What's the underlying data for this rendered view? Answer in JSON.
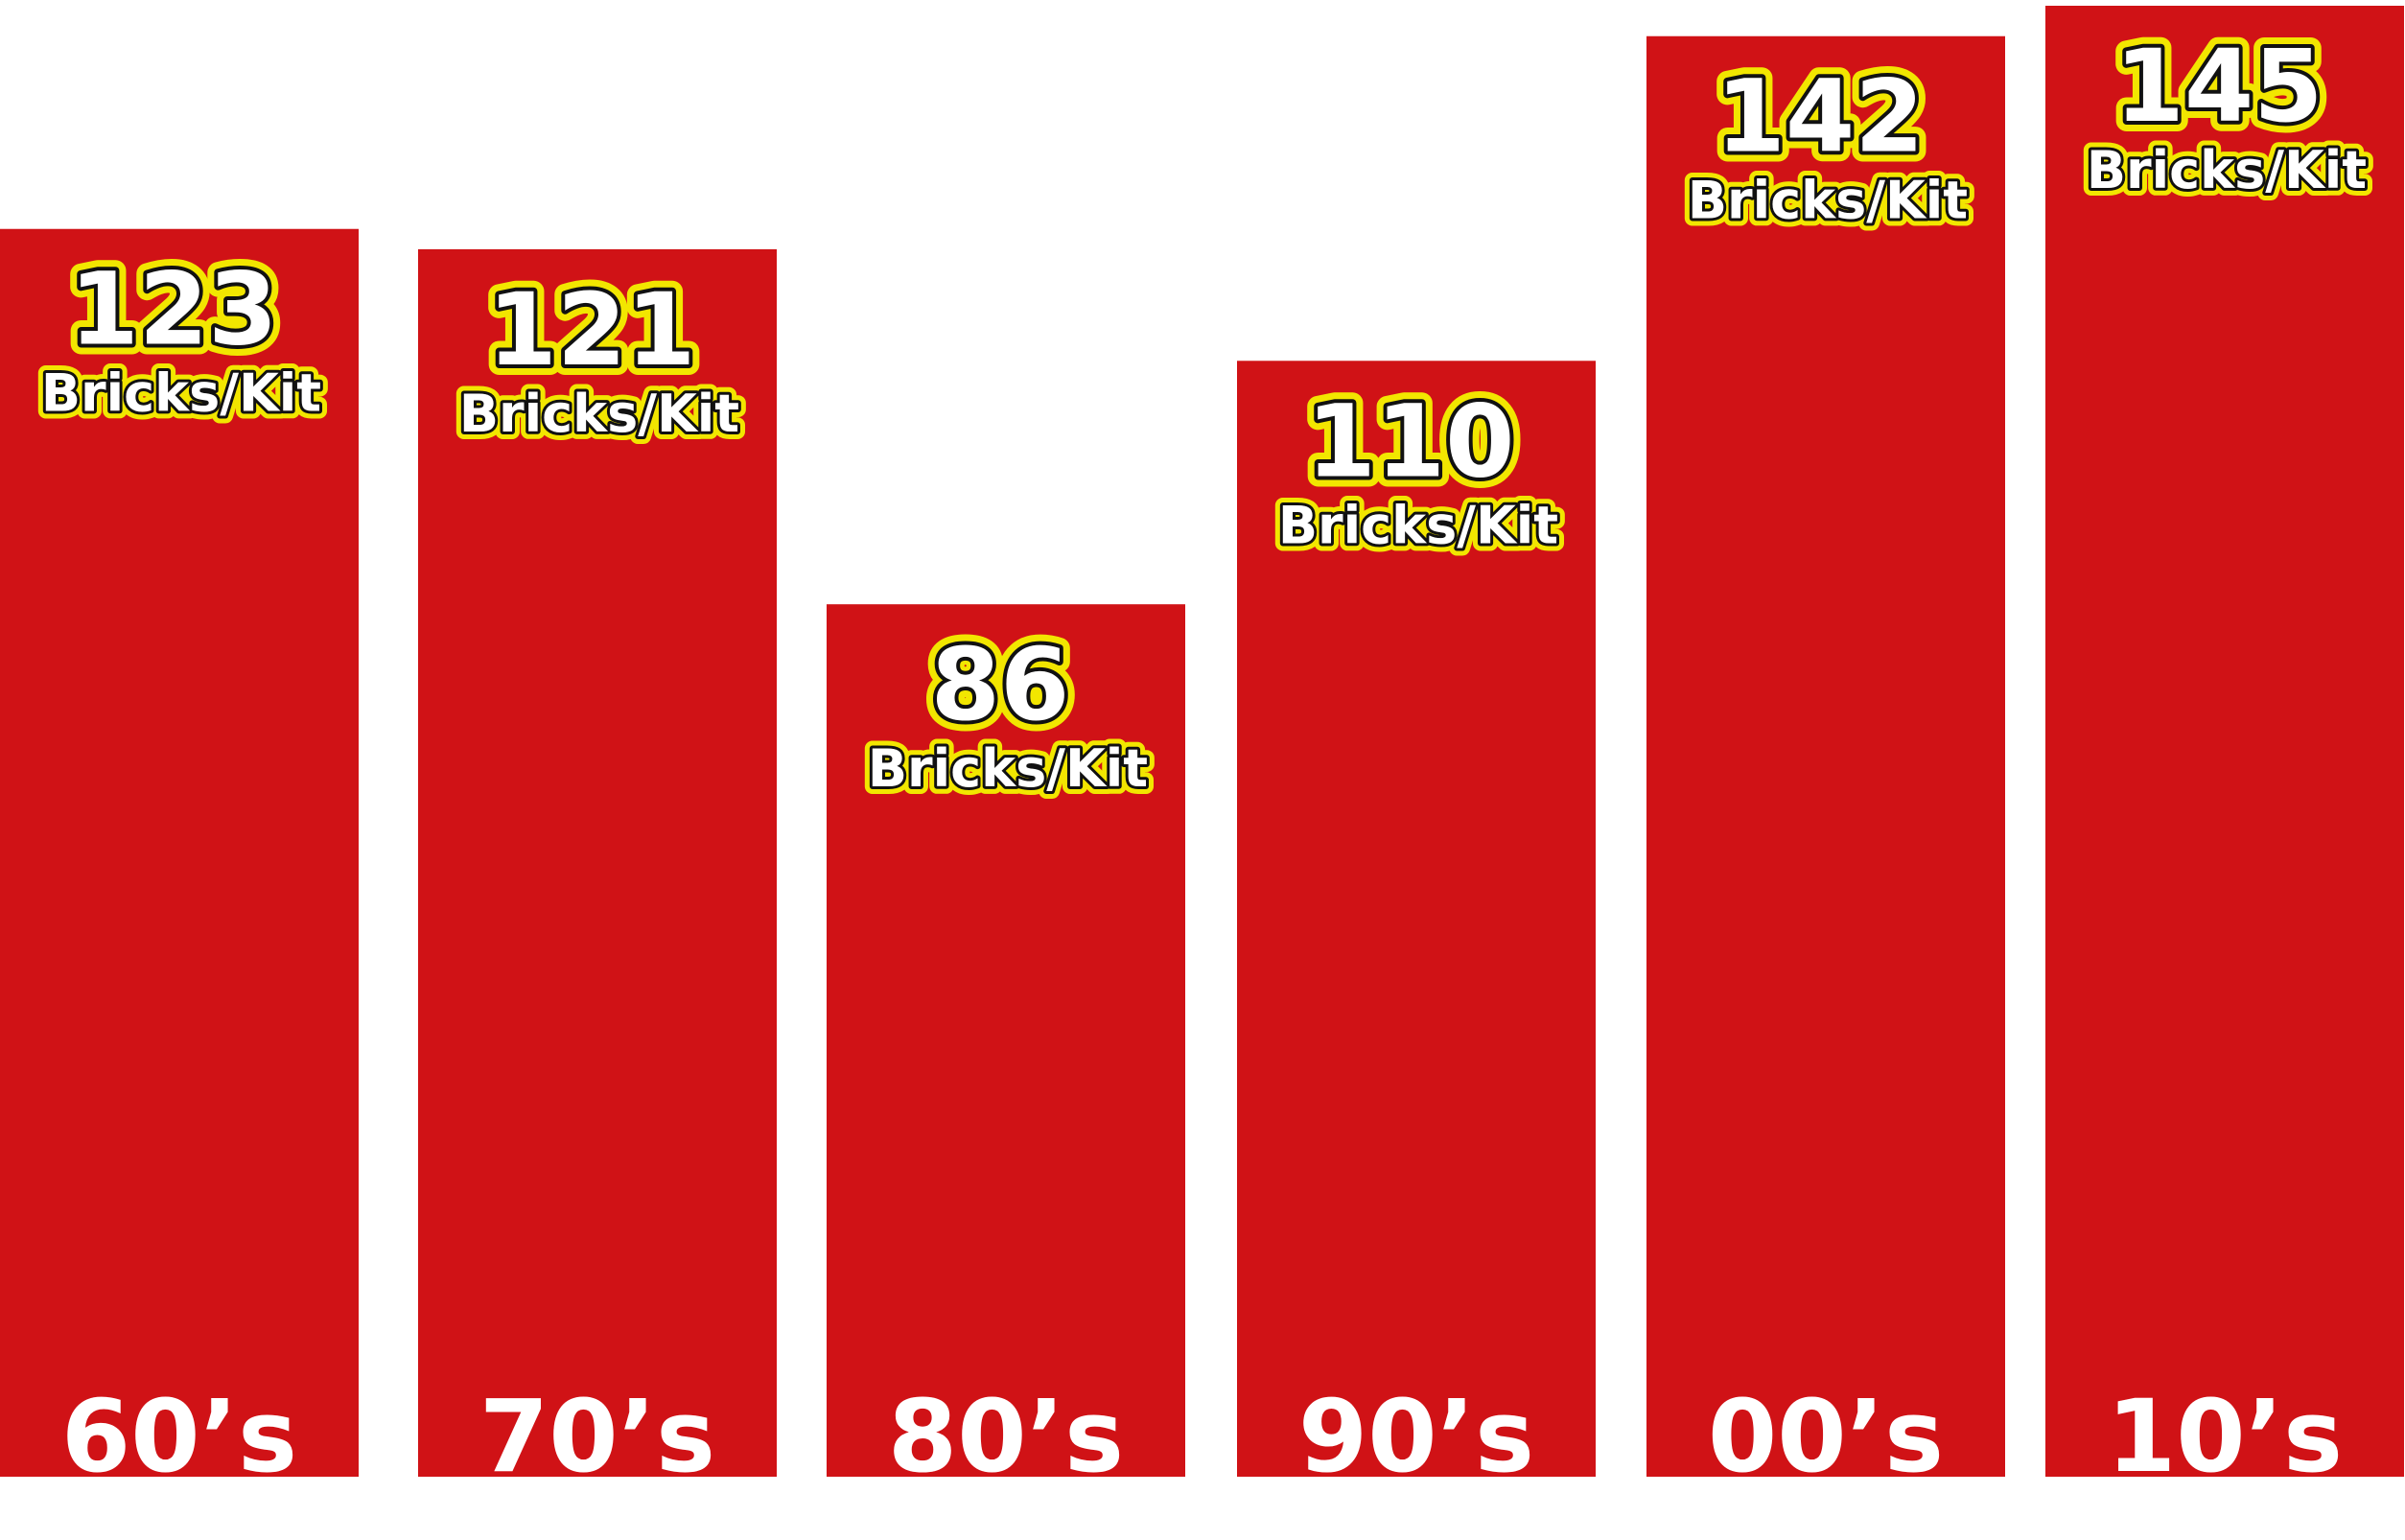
{
  "chart_data": {
    "type": "bar",
    "categories": [
      "60’s",
      "70’s",
      "80’s",
      "90’s",
      "00’s",
      "10’s"
    ],
    "values": [
      123,
      121,
      86,
      110,
      142,
      145
    ],
    "unit_label": "Bricks/Kit",
    "ylim": [
      0,
      145
    ],
    "grid": false,
    "legend": "none",
    "colors": {
      "bar": "#d01216",
      "text": "#ffffff",
      "label_outline": "#f2e600",
      "label_inner_outline": "#111111",
      "background": "#ffffff"
    }
  }
}
